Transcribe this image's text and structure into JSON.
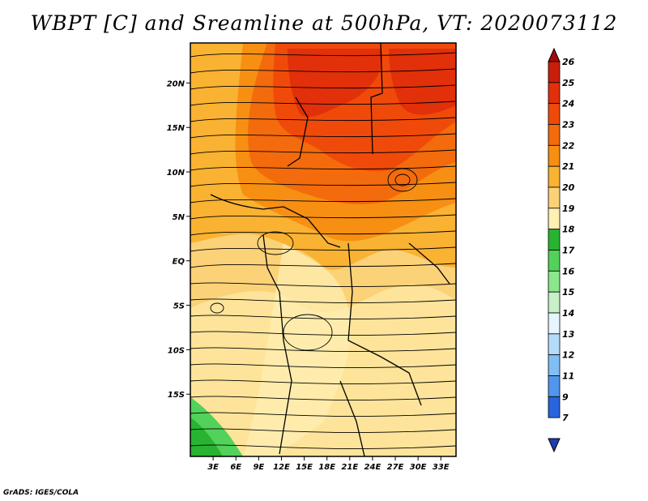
{
  "title": "WBPT [C] and Sreamline at 500hPa, VT: 2020073112",
  "credit": "GrADS: IGES/COLA",
  "map": {
    "lat_ticks": [
      "20N",
      "15N",
      "10N",
      "5N",
      "EQ",
      "5S",
      "10S",
      "15S"
    ],
    "lon_ticks": [
      "3E",
      "6E",
      "9E",
      "12E",
      "15E",
      "18E",
      "21E",
      "24E",
      "27E",
      "30E",
      "33E"
    ],
    "lon_range": [
      0,
      35
    ],
    "lat_range": [
      -22,
      24.5
    ],
    "field": "Wet-bulb potential temperature (C)",
    "overlay": "500hPa streamlines"
  },
  "colorbar": {
    "labels": [
      "26",
      "25",
      "24",
      "23",
      "22",
      "21",
      "20",
      "19",
      "18",
      "17",
      "16",
      "15",
      "14",
      "13",
      "12",
      "11",
      "9",
      "7"
    ],
    "colors": [
      "#a50a0a",
      "#c81e0a",
      "#e1300a",
      "#f04a0a",
      "#f36b0c",
      "#f78f12",
      "#fab232",
      "#fcd278",
      "#fff0b4",
      "#28b432",
      "#52d25a",
      "#8ce68c",
      "#c8f0c8",
      "#e6f5ff",
      "#b4dcfa",
      "#82bef5",
      "#5096ee",
      "#2864dc",
      "#1e3cb4"
    ]
  }
}
